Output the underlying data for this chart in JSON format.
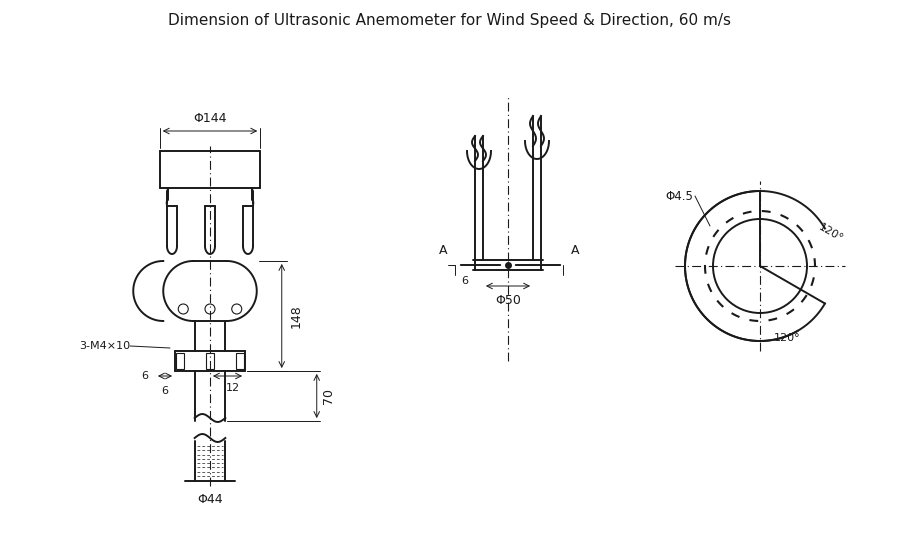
{
  "bg_color": "#ffffff",
  "line_color": "#1a1a1a",
  "dim_color": "#1a1a1a",
  "title": "Dimension of Ultrasonic Anemometer for Wind Speed & Direction, 60 m/s",
  "title_fontsize": 11,
  "annotations": {
    "phi144": "Φ144",
    "phi44": "Φ44",
    "phi50": "Φ50",
    "phi45": "Φ4.5",
    "dim148": "148",
    "dim70": "70",
    "dim12": "12",
    "dim6_left": "6",
    "dim6_bottom": "6",
    "label_3M4x10": "3-M4×10",
    "label_A_left": "A",
    "label_A_right": "A",
    "angle_120_upper": "120°",
    "angle_120_lower": "120°"
  }
}
